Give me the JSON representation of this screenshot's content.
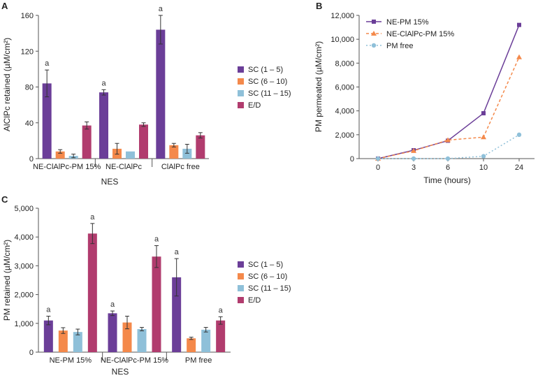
{
  "chart_data": [
    {
      "panel": "A",
      "type": "bar",
      "xlabel": "NES",
      "ylabel": "AlClPc retained (µM/cm²)",
      "ylim": [
        0,
        160
      ],
      "yticks": [
        0,
        40,
        80,
        120,
        160
      ],
      "ytick_labels": [
        "0",
        "40",
        "80",
        "120",
        "160"
      ],
      "categories": [
        "NE-ClAlPc-PM 15%",
        "NE-ClAlPc",
        "ClAlPc free"
      ],
      "series": [
        {
          "name": "SC (1 – 5)",
          "color": "#6b3e98",
          "values": [
            84,
            74,
            144
          ],
          "errors": [
            15,
            3,
            16
          ],
          "annotations": [
            "a",
            "a",
            "a"
          ]
        },
        {
          "name": "SC (6 – 10)",
          "color": "#f4894b",
          "values": [
            8,
            11,
            15
          ],
          "errors": [
            2,
            6,
            2
          ],
          "annotations": [
            "",
            "",
            ""
          ]
        },
        {
          "name": "SC (11 – 15)",
          "color": "#8fc0d9",
          "values": [
            3,
            8,
            11
          ],
          "errors": [
            2,
            0,
            5
          ],
          "annotations": [
            "",
            "",
            ""
          ]
        },
        {
          "name": "E/D",
          "color": "#b13c6e",
          "values": [
            37,
            38,
            26
          ],
          "errors": [
            4,
            2,
            3
          ],
          "annotations": [
            "",
            "",
            ""
          ]
        }
      ]
    },
    {
      "panel": "B",
      "type": "line",
      "xlabel": "Time (hours)",
      "ylabel": "PM permeated (µM/cm²)",
      "ylim": [
        0,
        12000
      ],
      "yticks": [
        0,
        2000,
        4000,
        6000,
        8000,
        10000,
        12000
      ],
      "ytick_labels": [
        "0",
        "2,000",
        "4,000",
        "6,000",
        "8,000",
        "10,000",
        "12,000"
      ],
      "x": [
        "0",
        "3",
        "6",
        "10",
        "24"
      ],
      "series": [
        {
          "name": "NE-PM 15%",
          "color": "#6b3e98",
          "marker": "square",
          "dash": "",
          "values": [
            0,
            700,
            1500,
            3800,
            11200
          ]
        },
        {
          "name": "NE-ClAlPc-PM 15%",
          "color": "#f4894b",
          "marker": "triangle",
          "dash": "4,3",
          "values": [
            0,
            650,
            1550,
            1800,
            8500
          ]
        },
        {
          "name": "PM free",
          "color": "#8fc0d9",
          "marker": "circle",
          "dash": "2,3",
          "values": [
            0,
            0,
            0,
            200,
            2000
          ]
        }
      ]
    },
    {
      "panel": "C",
      "type": "bar",
      "xlabel": "NES",
      "ylabel": "PM retained (µM/cm²)",
      "ylim": [
        0,
        5000
      ],
      "yticks": [
        0,
        1000,
        2000,
        3000,
        4000,
        5000
      ],
      "ytick_labels": [
        "0",
        "1,000",
        "2,000",
        "3,000",
        "4,000",
        "5,000"
      ],
      "categories": [
        "NE-PM 15%",
        "NE-ClAlPc-PM 15%",
        "PM free"
      ],
      "series": [
        {
          "name": "SC (1 – 5)",
          "color": "#6b3e98",
          "values": [
            1100,
            1350,
            2600
          ],
          "errors": [
            150,
            80,
            650
          ],
          "annotations": [
            "a",
            "a",
            "a"
          ]
        },
        {
          "name": "SC (6 – 10)",
          "color": "#f4894b",
          "values": [
            750,
            1030,
            480
          ],
          "errors": [
            100,
            220,
            40
          ],
          "annotations": [
            "",
            "",
            ""
          ]
        },
        {
          "name": "SC (11 – 15)",
          "color": "#8fc0d9",
          "values": [
            700,
            800,
            780
          ],
          "errors": [
            100,
            60,
            80
          ],
          "annotations": [
            "",
            "",
            ""
          ]
        },
        {
          "name": "E/D",
          "color": "#b13c6e",
          "values": [
            4120,
            3320,
            1100
          ],
          "errors": [
            350,
            380,
            130
          ],
          "annotations": [
            "a",
            "a",
            "a"
          ]
        }
      ]
    }
  ]
}
